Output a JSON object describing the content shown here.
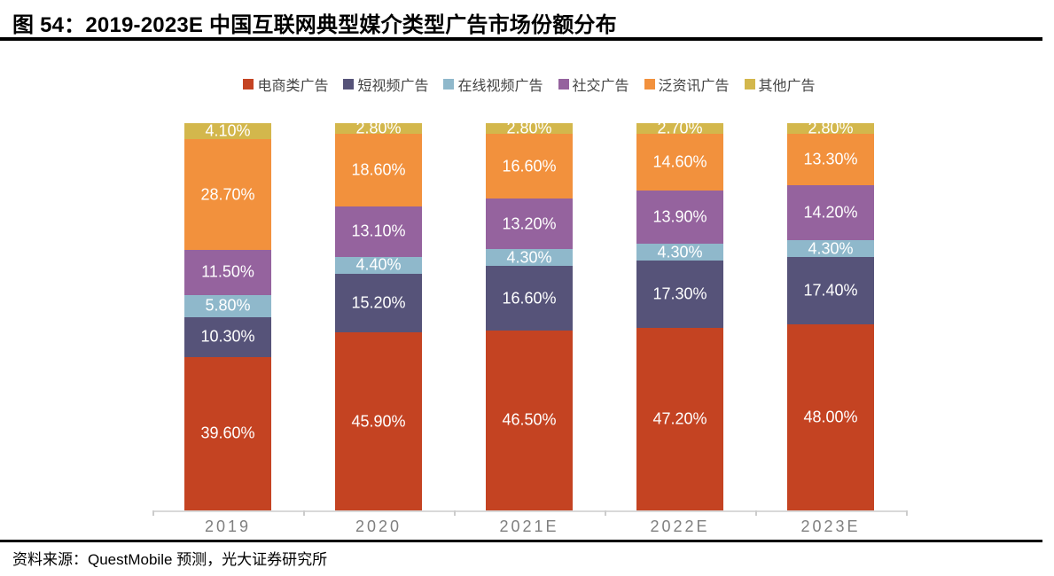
{
  "page": {
    "title": "图 54：2019-2023E 中国互联网典型媒介类型广告市场份额分布",
    "source": "资料来源：QuestMobile 预测，光大证券研究所"
  },
  "chart_data": {
    "type": "bar",
    "variant": "stacked-column-100",
    "title": "2019-2023E 中国互联网典型媒介类型广告市场份额分布",
    "xlabel": "",
    "ylabel": "",
    "ylim": [
      0,
      100
    ],
    "unit": "%",
    "grid": false,
    "legend_position": "top",
    "categories": [
      "2019",
      "2020",
      "2021E",
      "2022E",
      "2023E"
    ],
    "series": [
      {
        "name": "电商类广告",
        "color": "#c44322",
        "values": [
          39.6,
          45.9,
          46.5,
          47.2,
          48.0
        ],
        "labels": [
          "39.60%",
          "45.90%",
          "46.50%",
          "47.20%",
          "48.00%"
        ]
      },
      {
        "name": "短视频广告",
        "color": "#565379",
        "values": [
          10.3,
          15.2,
          16.6,
          17.3,
          17.4
        ],
        "labels": [
          "10.30%",
          "15.20%",
          "16.60%",
          "17.30%",
          "17.40%"
        ]
      },
      {
        "name": "在线视频广告",
        "color": "#8fb8cb",
        "values": [
          5.8,
          4.4,
          4.3,
          4.3,
          4.3
        ],
        "labels": [
          "5.80%",
          "4.40%",
          "4.30%",
          "4.30%",
          "4.30%"
        ]
      },
      {
        "name": "社交广告",
        "color": "#95639e",
        "values": [
          11.5,
          13.1,
          13.2,
          13.9,
          14.2
        ],
        "labels": [
          "11.50%",
          "13.10%",
          "13.20%",
          "13.90%",
          "14.20%"
        ]
      },
      {
        "name": "泛资讯广告",
        "color": "#f2913d",
        "values": [
          28.7,
          18.6,
          16.6,
          14.6,
          13.3
        ],
        "labels": [
          "28.70%",
          "18.60%",
          "16.60%",
          "14.60%",
          "13.30%"
        ]
      },
      {
        "name": "其他广告",
        "color": "#d3b74c",
        "values": [
          4.1,
          2.8,
          2.8,
          2.7,
          2.8
        ],
        "labels": [
          "4.10%",
          "2.80%",
          "2.80%",
          "2.70%",
          "2.80%"
        ]
      }
    ],
    "axis_color": "#d9d9d9",
    "x_label_color": "#7f7f7f",
    "value_label_color": "#ffffff"
  }
}
